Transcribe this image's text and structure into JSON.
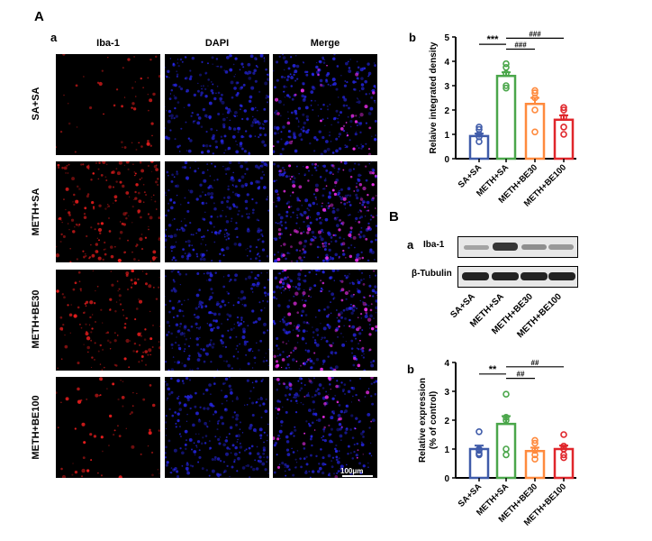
{
  "panel_labels": {
    "A": "A",
    "A_a": "a",
    "A_b": "b",
    "B": "B",
    "B_a": "a",
    "B_b": "b"
  },
  "micrograph": {
    "columns": [
      "Iba-1",
      "DAPI",
      "Merge"
    ],
    "rows": [
      "SA+SA",
      "METH+SA",
      "METH+BE30",
      "METH+BE100"
    ],
    "scale_bar": "100μm",
    "colors": {
      "iba1": "#ff2020",
      "dapi": "#2a2aff",
      "merge": "#ff30ff"
    }
  },
  "western_blot": {
    "proteins": [
      "Iba-1",
      "β-Tubulin"
    ],
    "lanes": [
      "SA+SA",
      "METH+SA",
      "METH+BE30",
      "METH+BE100"
    ]
  },
  "chart_data": [
    {
      "type": "bar",
      "id": "A_b",
      "categories": [
        "SA+SA",
        "METH+SA",
        "METH+BE30",
        "METH+BE100"
      ],
      "colors": [
        "#3f5ba9",
        "#4aa64a",
        "#ff8a3d",
        "#e0262b"
      ],
      "ylabel": "Relaive integrated density",
      "ylim": [
        0,
        5
      ],
      "yticks": [
        0,
        1,
        2,
        3,
        4,
        5
      ],
      "means": [
        0.93,
        3.4,
        2.25,
        1.6
      ],
      "sem": [
        0.1,
        0.15,
        0.25,
        0.18
      ],
      "points": [
        [
          1.3,
          1.2,
          1.0,
          0.9,
          0.7
        ],
        [
          3.9,
          3.75,
          3.5,
          3.0,
          2.9
        ],
        [
          2.8,
          2.7,
          2.5,
          2.0,
          1.1
        ],
        [
          2.1,
          2.0,
          1.7,
          1.3,
          1.0
        ]
      ],
      "significance": [
        {
          "from": 0,
          "to": 1,
          "label": "***",
          "level": 4.7
        },
        {
          "from": 1,
          "to": 2,
          "label": "###",
          "level": 4.5
        },
        {
          "from": 1,
          "to": 3,
          "label": "###",
          "level": 4.95
        }
      ]
    },
    {
      "type": "bar",
      "id": "B_b",
      "categories": [
        "SA+SA",
        "METH+SA",
        "METH+BE30",
        "METH+BE100"
      ],
      "colors": [
        "#3f5ba9",
        "#4aa64a",
        "#ff8a3d",
        "#e0262b"
      ],
      "ylabel": "Relative expression\n(% of control)",
      "ylim": [
        0,
        4
      ],
      "yticks": [
        0,
        1,
        2,
        3,
        4
      ],
      "means": [
        1.0,
        1.87,
        0.93,
        1.0
      ],
      "sem": [
        0.12,
        0.27,
        0.12,
        0.12
      ],
      "points": [
        [
          1.6,
          1.0,
          0.95,
          0.85,
          0.8
        ],
        [
          2.9,
          2.1,
          2.0,
          1.0,
          0.8
        ],
        [
          1.3,
          1.2,
          0.95,
          0.8,
          0.65
        ],
        [
          1.5,
          1.1,
          1.0,
          0.8,
          0.7
        ]
      ],
      "significance": [
        {
          "from": 0,
          "to": 1,
          "label": "**",
          "level": 3.6
        },
        {
          "from": 1,
          "to": 2,
          "label": "##",
          "level": 3.45
        },
        {
          "from": 1,
          "to": 3,
          "label": "##",
          "level": 3.85
        }
      ]
    }
  ]
}
